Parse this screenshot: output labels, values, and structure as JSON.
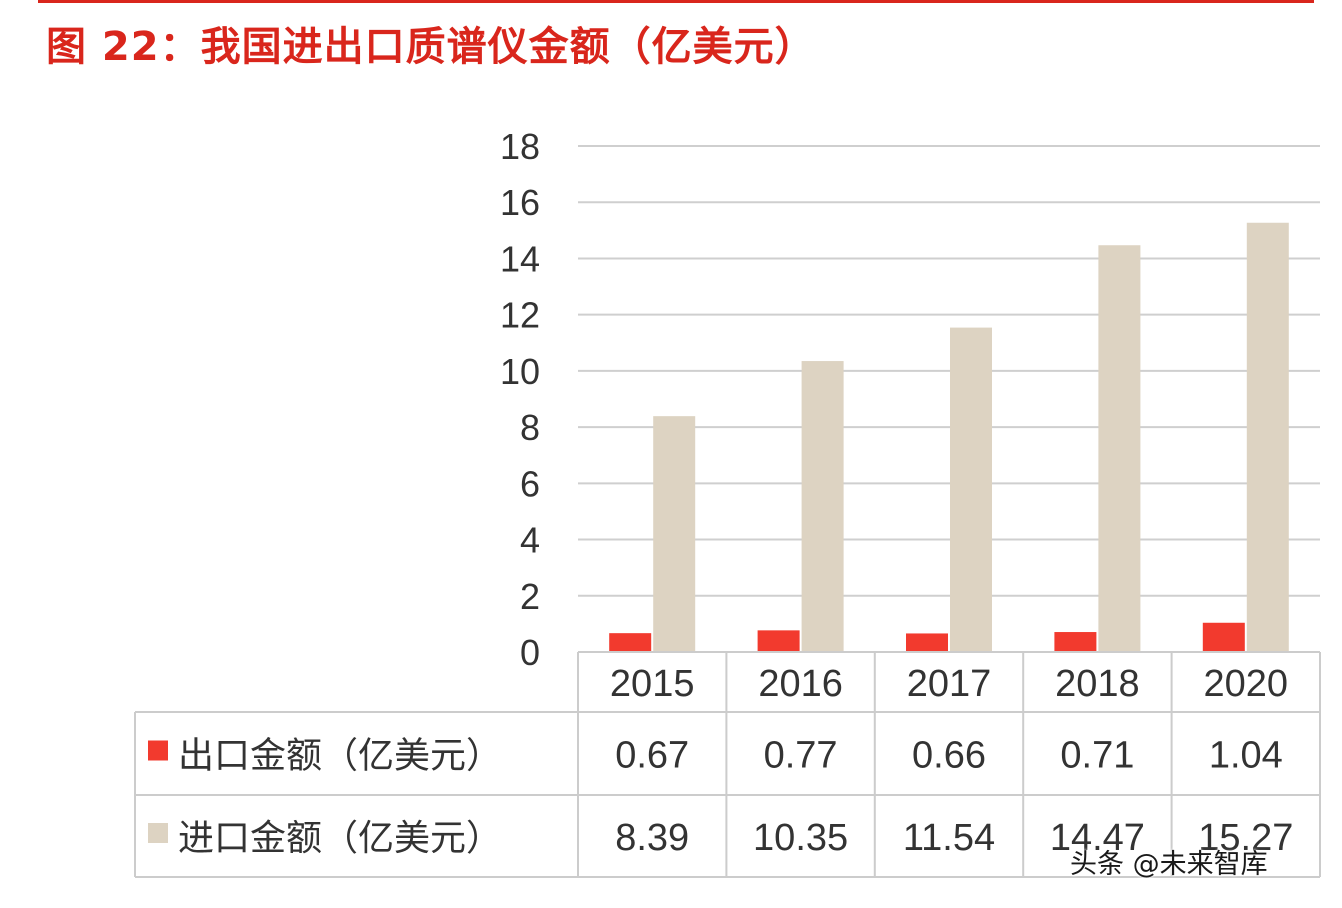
{
  "figure": {
    "title": "图 22：我国进出口质谱仪金额（亿美元）"
  },
  "watermark": {
    "text": "头条 @未来智库"
  },
  "chart_data": {
    "type": "bar",
    "categories": [
      "2015",
      "2016",
      "2017",
      "2018",
      "2020"
    ],
    "series": [
      {
        "name": "出口金额（亿美元）",
        "values": [
          0.67,
          0.77,
          0.66,
          0.71,
          1.04
        ],
        "value_labels": [
          "0.67",
          "0.77",
          "0.66",
          "0.71",
          "1.04"
        ],
        "color": "#f23a2e"
      },
      {
        "name": "进口金额（亿美元）",
        "values": [
          8.39,
          10.35,
          11.54,
          14.47,
          15.27
        ],
        "value_labels": [
          "8.39",
          "10.35",
          "11.54",
          "14.47",
          "15.27"
        ],
        "color": "#ddd3c2"
      }
    ],
    "ylim": [
      0,
      18
    ],
    "yticks": [
      "0",
      "2",
      "4",
      "6",
      "8",
      "10",
      "12",
      "14",
      "16",
      "18"
    ],
    "grid": true,
    "legend": "data-table",
    "data_table": true,
    "colors": {
      "grid": "#cfcfcf",
      "table_border": "#cccccc",
      "text": "#333333",
      "title": "#d9261c"
    }
  }
}
